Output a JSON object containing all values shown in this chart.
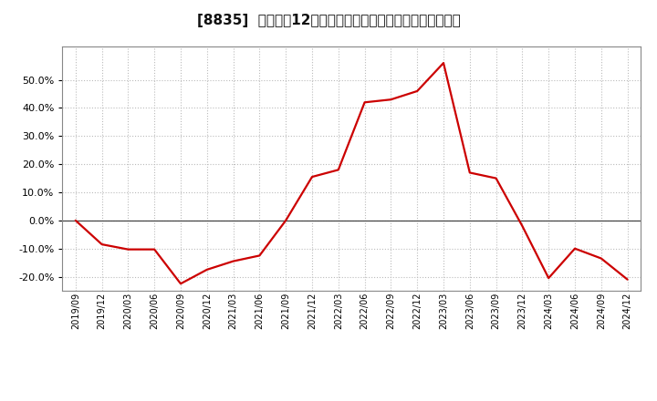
{
  "title": "[8835]  売上高の12か月移動合計の対前年同期増減率の推移",
  "line_color": "#cc0000",
  "background_color": "#ffffff",
  "plot_bg_color": "#ffffff",
  "grid_color": "#bbbbbb",
  "zero_line_color": "#444444",
  "ylim": [
    -0.25,
    0.62
  ],
  "yticks": [
    -0.2,
    -0.1,
    0.0,
    0.1,
    0.2,
    0.3,
    0.4,
    0.5
  ],
  "dates": [
    "2019/09",
    "2019/12",
    "2020/03",
    "2020/06",
    "2020/09",
    "2020/12",
    "2021/03",
    "2021/06",
    "2021/09",
    "2021/12",
    "2022/03",
    "2022/06",
    "2022/09",
    "2022/12",
    "2023/03",
    "2023/06",
    "2023/09",
    "2023/12",
    "2024/03",
    "2024/06",
    "2024/09",
    "2024/12"
  ],
  "values": [
    0.0,
    -0.085,
    -0.103,
    -0.103,
    -0.225,
    -0.175,
    -0.145,
    -0.125,
    0.0,
    0.155,
    0.18,
    0.42,
    0.43,
    0.46,
    0.56,
    0.17,
    0.15,
    -0.02,
    -0.205,
    -0.1,
    -0.135,
    -0.21
  ],
  "linewidth": 1.6,
  "title_fontsize": 11,
  "tick_fontsize": 8,
  "xtick_fontsize": 7
}
